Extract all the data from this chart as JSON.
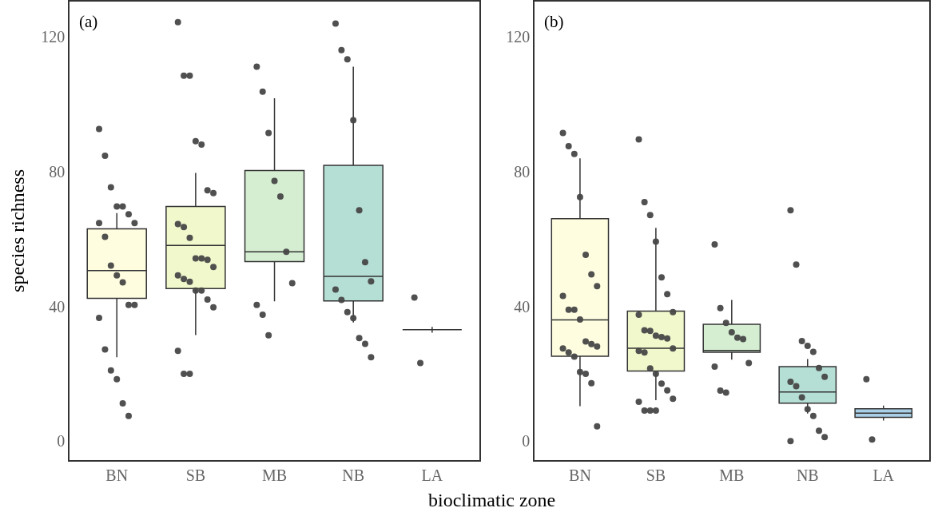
{
  "chart_data": [
    {
      "type": "box",
      "ylabel": "species richness",
      "xlabel": "bioclimatic zone",
      "annotations": [
        "(a)"
      ],
      "categories": [
        "BN",
        "SB",
        "MB",
        "NB",
        "LA"
      ],
      "colors": [
        "#fefde0",
        "#f1f8cc",
        "#d5eed2",
        "#b5ded4",
        "#333333"
      ],
      "boxes": [
        {
          "low": 24.9,
          "q1": 42.4,
          "median": 50.6,
          "q3": 63.0,
          "high": 67.7
        },
        {
          "low": 31.5,
          "q1": 45.3,
          "median": 58.1,
          "q3": 69.6,
          "high": 79.6
        },
        {
          "low": 41.5,
          "q1": 53.3,
          "median": 56.2,
          "q3": 80.3,
          "high": 101.7
        },
        {
          "low": 35.2,
          "q1": 41.6,
          "median": 48.9,
          "q3": 81.8,
          "high": 111.1
        },
        {
          "low": 32.2,
          "q1": 33.1,
          "median": 33.1,
          "q3": 33.1,
          "high": 33.9
        }
      ],
      "series": [
        {
          "type": "scatter",
          "color": "#474747",
          "x": [
            "BN",
            "BN",
            "BN",
            "BN",
            "BN",
            "BN",
            "BN",
            "BN",
            "BN",
            "BN",
            "BN",
            "BN",
            "BN",
            "BN",
            "BN",
            "BN",
            "BN",
            "BN",
            "BN",
            "BN",
            "BN",
            "SB",
            "SB",
            "SB",
            "SB",
            "SB",
            "SB",
            "SB",
            "SB",
            "SB",
            "SB",
            "SB",
            "SB",
            "SB",
            "SB",
            "SB",
            "SB",
            "SB",
            "SB",
            "SB",
            "SB",
            "SB",
            "SB",
            "SB",
            "SB",
            "MB",
            "MB",
            "MB",
            "MB",
            "MB",
            "MB",
            "MB",
            "MB",
            "MB",
            "MB",
            "NB",
            "NB",
            "NB",
            "NB",
            "NB",
            "NB",
            "NB",
            "NB",
            "NB",
            "NB",
            "NB",
            "NB",
            "NB",
            "NB",
            "LA",
            "LA"
          ],
          "values": [
            92.6,
            84.7,
            75.3,
            69.6,
            69.6,
            67.3,
            64.7,
            64.7,
            60.6,
            52.1,
            49.2,
            47.1,
            40.4,
            40.4,
            36.6,
            27.2,
            21.0,
            18.4,
            11.2,
            7.5,
            null,
            124.3,
            108.4,
            108.4,
            89.0,
            88.0,
            74.4,
            73.6,
            64.4,
            63.5,
            60.3,
            54.2,
            54.2,
            53.8,
            51.7,
            49.2,
            48.1,
            47.3,
            44.7,
            44.7,
            42.0,
            39.7,
            26.8,
            20.0,
            20.0,
            111.1,
            103.7,
            91.4,
            77.2,
            72.6,
            56.2,
            46.9,
            40.4,
            37.5,
            31.4,
            123.9,
            116.0,
            113.3,
            95.2,
            68.5,
            53.1,
            47.4,
            45.0,
            41.9,
            38.3,
            36.5,
            30.6,
            28.9,
            24.9,
            42.6,
            23.2
          ]
        }
      ],
      "ylim": [
        -5.6,
        130.4
      ],
      "yticks": [
        0,
        40,
        80,
        120
      ]
    },
    {
      "type": "box",
      "annotations": [
        "(b)"
      ],
      "categories": [
        "BN",
        "SB",
        "MB",
        "NB",
        "LA"
      ],
      "colors": [
        "#fefde0",
        "#f1f8cc",
        "#d5eed2",
        "#b5ded4",
        "#a9d0e6"
      ],
      "boxes": [
        {
          "low": 10.4,
          "q1": 25.2,
          "median": 36.0,
          "q3": 66.0,
          "high": 83.9
        },
        {
          "low": 12.2,
          "q1": 20.8,
          "median": 27.6,
          "q3": 38.6,
          "high": 63.3
        },
        {
          "low": 24.2,
          "q1": 26.4,
          "median": 26.9,
          "q3": 34.7,
          "high": 41.9
        },
        {
          "low": 8.2,
          "q1": 11.3,
          "median": 14.6,
          "q3": 22.1,
          "high": 24.4
        },
        {
          "low": 6.1,
          "q1": 7.1,
          "median": 8.3,
          "q3": 9.6,
          "high": 10.6
        }
      ],
      "series": [
        {
          "type": "scatter",
          "color": "#474747",
          "x": [
            "BN",
            "BN",
            "BN",
            "BN",
            "BN",
            "BN",
            "BN",
            "BN",
            "BN",
            "BN",
            "BN",
            "BN",
            "BN",
            "BN",
            "BN",
            "BN",
            "BN",
            "BN",
            "BN",
            "BN",
            "BN",
            "SB",
            "SB",
            "SB",
            "SB",
            "SB",
            "SB",
            "SB",
            "SB",
            "SB",
            "SB",
            "SB",
            "SB",
            "SB",
            "SB",
            "SB",
            "SB",
            "SB",
            "SB",
            "SB",
            "SB",
            "SB",
            "SB",
            "SB",
            "SB",
            "SB",
            "MB",
            "MB",
            "MB",
            "MB",
            "MB",
            "MB",
            "MB",
            "MB",
            "MB",
            "MB",
            "NB",
            "NB",
            "NB",
            "NB",
            "NB",
            "NB",
            "NB",
            "NB",
            "NB",
            "NB",
            "NB",
            "NB",
            "NB",
            "NB",
            "NB",
            "LA",
            "LA"
          ],
          "values": [
            91.4,
            87.5,
            85.2,
            72.4,
            55.3,
            49.5,
            46.0,
            43.1,
            39.0,
            39.0,
            36.1,
            29.6,
            28.8,
            28.1,
            27.5,
            26.3,
            25.1,
            20.5,
            20.0,
            17.2,
            4.4,
            89.5,
            70.9,
            67.1,
            59.2,
            48.6,
            43.6,
            38.3,
            37.5,
            32.9,
            32.7,
            31.3,
            30.9,
            30.5,
            27.5,
            26.8,
            26.3,
            21.6,
            20.0,
            17.1,
            15.1,
            12.6,
            11.7,
            9.1,
            9.1,
            9.1,
            58.4,
            39.5,
            35.1,
            32.3,
            30.7,
            30.3,
            23.2,
            22.1,
            15.0,
            14.4,
            68.5,
            52.4,
            29.7,
            28.3,
            26.5,
            21.7,
            19.1,
            17.6,
            16.3,
            13.0,
            9.5,
            7.5,
            3.1,
            1.2,
            0.0,
            18.4,
            0.5
          ]
        }
      ],
      "ylim": [
        -5.6,
        130.4
      ],
      "yticks": [
        0,
        40,
        80,
        120
      ]
    }
  ]
}
